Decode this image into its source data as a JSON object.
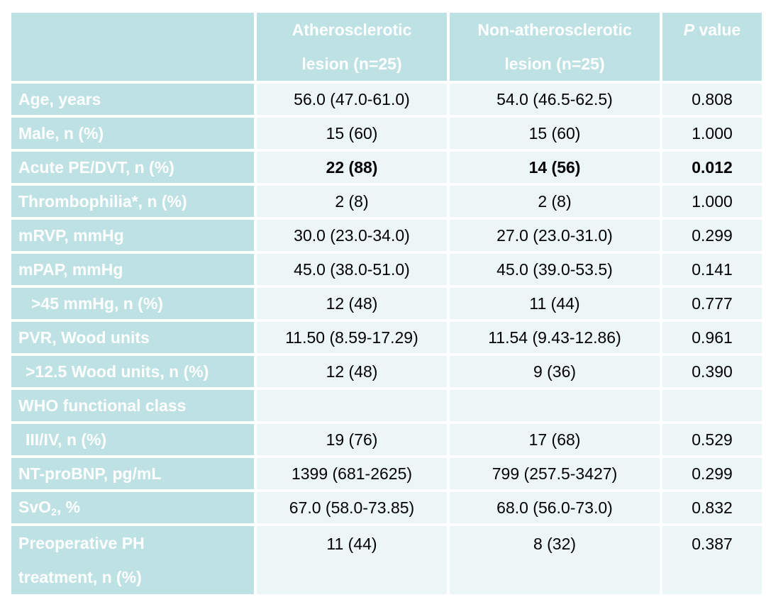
{
  "header": {
    "col1_line1": "Atherosclerotic",
    "col1_line2": "lesion (n=25)",
    "col2_line1": "Non-atherosclerotic",
    "col2_line2": "lesion (n=25)",
    "col3_p": "P",
    "col3_rest": " value"
  },
  "rows": [
    {
      "label": "Age, years",
      "a": "56.0 (47.0-61.0)",
      "b": "54.0 (46.5-62.5)",
      "p": "0.808"
    },
    {
      "label": "Male, n (%)",
      "a": "15 (60)",
      "b": "15 (60)",
      "p": "1.000"
    },
    {
      "label": "Acute PE/DVT, n (%)",
      "a": "22 (88)",
      "b": "14 (56)",
      "p": "0.012"
    },
    {
      "label": "Thrombophilia*, n (%)",
      "a": "2 (8)",
      "b": "2 (8)",
      "p": "1.000"
    },
    {
      "label": "mRVP, mmHg",
      "a": "30.0 (23.0-34.0)",
      "b": "27.0 (23.0-31.0)",
      "p": "0.299"
    },
    {
      "label": "mPAP, mmHg",
      "a": "45.0 (38.0-51.0)",
      "b": "45.0 (39.0-53.5)",
      "p": "0.141"
    },
    {
      "label": ">45 mmHg, n (%)",
      "a": "12 (48)",
      "b": "11 (44)",
      "p": "0.777"
    },
    {
      "label": "PVR, Wood units",
      "a": "11.50 (8.59-17.29)",
      "b": "11.54 (9.43-12.86)",
      "p": "0.961"
    },
    {
      "label": ">12.5 Wood units, n (%)",
      "a": "12 (48)",
      "b": "9 (36)",
      "p": "0.390"
    },
    {
      "label": "WHO functional class",
      "a": "",
      "b": "",
      "p": ""
    },
    {
      "label": "III/IV, n (%)",
      "a": "19 (76)",
      "b": "17 (68)",
      "p": "0.529"
    },
    {
      "label": "NT-proBNP, pg/mL",
      "a": "1399 (681-2625)",
      "b": "799 (257.5-3427)",
      "p": "0.299"
    },
    {
      "label_main": "SvO",
      "label_sub": "2",
      "label_tail": ", %",
      "a": "67.0 (58.0-73.85)",
      "b": "68.0 (56.0-73.0)",
      "p": "0.832"
    },
    {
      "label_line1": "Preoperative PH",
      "label_line2": "treatment, n (%)",
      "a": "11 (44)",
      "b": "8 (32)",
      "p": "0.387"
    }
  ]
}
